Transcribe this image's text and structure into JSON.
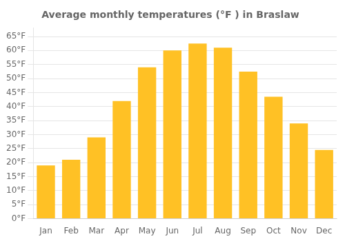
{
  "chart_data": {
    "type": "bar",
    "title": "Average monthly temperatures (°F ) in Braslaw",
    "categories": [
      "Jan",
      "Feb",
      "Mar",
      "Apr",
      "May",
      "Jun",
      "Jul",
      "Aug",
      "Sep",
      "Oct",
      "Nov",
      "Dec"
    ],
    "values": [
      19,
      21,
      29,
      42,
      54,
      60,
      62.5,
      61,
      52.5,
      43.5,
      34,
      24.5
    ],
    "color": "#FFC125",
    "ylim": [
      0,
      68
    ],
    "yticks": [
      {
        "value": 0,
        "label": "0°F"
      },
      {
        "value": 5,
        "label": "5°F"
      },
      {
        "value": 10,
        "label": "10°F"
      },
      {
        "value": 15,
        "label": "15°F"
      },
      {
        "value": 20,
        "label": "20°F"
      },
      {
        "value": 25,
        "label": "25°F"
      },
      {
        "value": 30,
        "label": "30°F"
      },
      {
        "value": 35,
        "label": "35°F"
      },
      {
        "value": 40,
        "label": "40°F"
      },
      {
        "value": 45,
        "label": "45°F"
      },
      {
        "value": 50,
        "label": "50°F"
      },
      {
        "value": 55,
        "label": "55°F"
      },
      {
        "value": 60,
        "label": "60°F"
      },
      {
        "value": 65,
        "label": "65°F"
      }
    ],
    "grid": true
  }
}
